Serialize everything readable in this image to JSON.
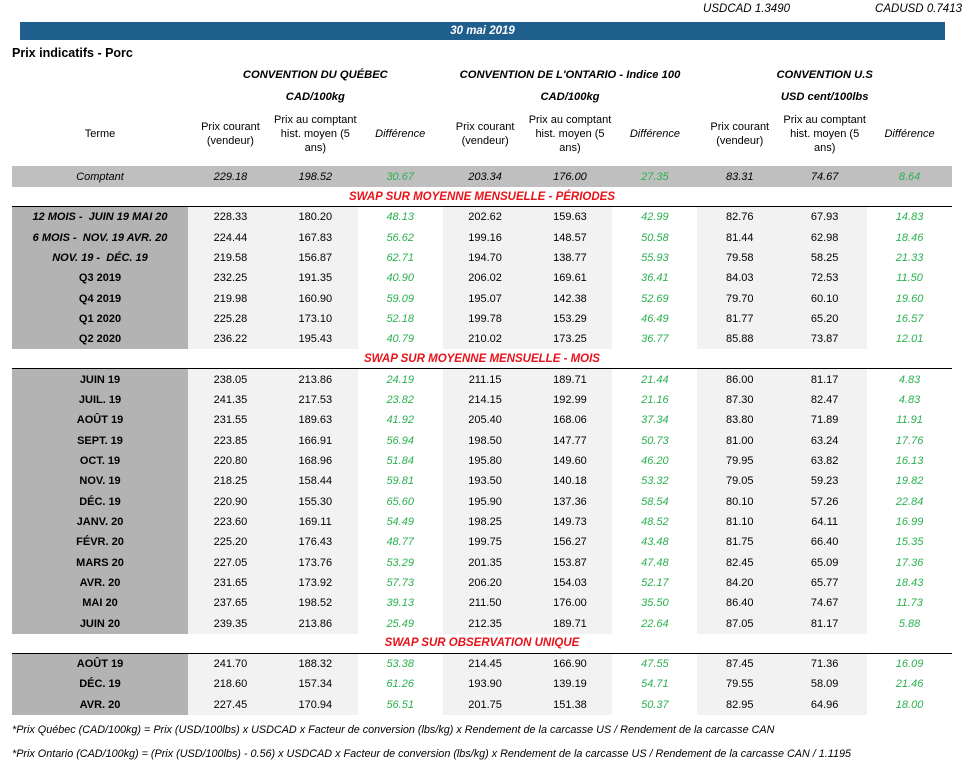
{
  "rates": {
    "usdcad_label": "USDCAD",
    "usdcad_value": "1.3490",
    "cadusd_label": "CADUSD",
    "cadusd_value": "0.7413"
  },
  "header": {
    "date": "30 mai 2019",
    "title": "Prix indicatifs - Porc"
  },
  "colors": {
    "banner_blue": "#1e5f8e",
    "section_red": "#e8131a",
    "diff_green": "#2bb150",
    "row_gray": "#bfbfbf",
    "terme_gray": "#b3b3b3",
    "cell_light": "#f2f2f2"
  },
  "groups": [
    {
      "title": "CONVENTION DU QUÉBEC",
      "unit": "CAD/100kg"
    },
    {
      "title": "CONVENTION DE L'ONTARIO - Indice 100",
      "unit": "CAD/100kg"
    },
    {
      "title": "CONVENTION U.S",
      "unit": "USD cent/100lbs"
    }
  ],
  "column_headers": {
    "terme": "Terme",
    "current": "Prix courant (vendeur)",
    "hist": "Prix au comptant hist. moyen (5 ans)",
    "diff": "Différence"
  },
  "spot_row": {
    "terme": "Comptant",
    "values": [
      "229.18",
      "198.52",
      "30.67",
      "203.34",
      "176.00",
      "27.35",
      "83.31",
      "74.67",
      "8.64"
    ]
  },
  "sections": [
    {
      "title": "SWAP SUR MOYENNE MENSUELLE - PÉRIODES",
      "rows": [
        {
          "terme": "12 MOIS -  JUIN 19 MAI 20",
          "italic": true,
          "values": [
            "228.33",
            "180.20",
            "48.13",
            "202.62",
            "159.63",
            "42.99",
            "82.76",
            "67.93",
            "14.83"
          ]
        },
        {
          "terme": "6 MOIS -  NOV. 19 AVR. 20",
          "italic": true,
          "values": [
            "224.44",
            "167.83",
            "56.62",
            "199.16",
            "148.57",
            "50.58",
            "81.44",
            "62.98",
            "18.46"
          ]
        },
        {
          "terme": "NOV. 19 -  DÉC. 19",
          "italic": true,
          "values": [
            "219.58",
            "156.87",
            "62.71",
            "194.70",
            "138.77",
            "55.93",
            "79.58",
            "58.25",
            "21.33"
          ]
        },
        {
          "terme": "Q3 2019",
          "italic": false,
          "values": [
            "232.25",
            "191.35",
            "40.90",
            "206.02",
            "169.61",
            "36.41",
            "84.03",
            "72.53",
            "11.50"
          ]
        },
        {
          "terme": "Q4 2019",
          "italic": false,
          "values": [
            "219.98",
            "160.90",
            "59.09",
            "195.07",
            "142.38",
            "52.69",
            "79.70",
            "60.10",
            "19.60"
          ]
        },
        {
          "terme": "Q1 2020",
          "italic": false,
          "values": [
            "225.28",
            "173.10",
            "52.18",
            "199.78",
            "153.29",
            "46.49",
            "81.77",
            "65.20",
            "16.57"
          ]
        },
        {
          "terme": "Q2 2020",
          "italic": false,
          "values": [
            "236.22",
            "195.43",
            "40.79",
            "210.02",
            "173.25",
            "36.77",
            "85.88",
            "73.87",
            "12.01"
          ]
        }
      ]
    },
    {
      "title": "SWAP SUR MOYENNE MENSUELLE - MOIS",
      "rows": [
        {
          "terme": "JUIN 19",
          "italic": false,
          "values": [
            "238.05",
            "213.86",
            "24.19",
            "211.15",
            "189.71",
            "21.44",
            "86.00",
            "81.17",
            "4.83"
          ]
        },
        {
          "terme": "JUIL. 19",
          "italic": false,
          "values": [
            "241.35",
            "217.53",
            "23.82",
            "214.15",
            "192.99",
            "21.16",
            "87.30",
            "82.47",
            "4.83"
          ]
        },
        {
          "terme": "AOÛT 19",
          "italic": false,
          "values": [
            "231.55",
            "189.63",
            "41.92",
            "205.40",
            "168.06",
            "37.34",
            "83.80",
            "71.89",
            "11.91"
          ]
        },
        {
          "terme": "SEPT. 19",
          "italic": false,
          "values": [
            "223.85",
            "166.91",
            "56.94",
            "198.50",
            "147.77",
            "50.73",
            "81.00",
            "63.24",
            "17.76"
          ]
        },
        {
          "terme": "OCT. 19",
          "italic": false,
          "values": [
            "220.80",
            "168.96",
            "51.84",
            "195.80",
            "149.60",
            "46.20",
            "79.95",
            "63.82",
            "16.13"
          ]
        },
        {
          "terme": "NOV. 19",
          "italic": false,
          "values": [
            "218.25",
            "158.44",
            "59.81",
            "193.50",
            "140.18",
            "53.32",
            "79.05",
            "59.23",
            "19.82"
          ]
        },
        {
          "terme": "DÉC. 19",
          "italic": false,
          "values": [
            "220.90",
            "155.30",
            "65.60",
            "195.90",
            "137.36",
            "58.54",
            "80.10",
            "57.26",
            "22.84"
          ]
        },
        {
          "terme": "JANV. 20",
          "italic": false,
          "values": [
            "223.60",
            "169.11",
            "54.49",
            "198.25",
            "149.73",
            "48.52",
            "81.10",
            "64.11",
            "16.99"
          ]
        },
        {
          "terme": "FÉVR. 20",
          "italic": false,
          "values": [
            "225.20",
            "176.43",
            "48.77",
            "199.75",
            "156.27",
            "43.48",
            "81.75",
            "66.40",
            "15.35"
          ]
        },
        {
          "terme": "MARS 20",
          "italic": false,
          "values": [
            "227.05",
            "173.76",
            "53.29",
            "201.35",
            "153.87",
            "47.48",
            "82.45",
            "65.09",
            "17.36"
          ]
        },
        {
          "terme": "AVR. 20",
          "italic": false,
          "values": [
            "231.65",
            "173.92",
            "57.73",
            "206.20",
            "154.03",
            "52.17",
            "84.20",
            "65.77",
            "18.43"
          ]
        },
        {
          "terme": "MAI 20",
          "italic": false,
          "values": [
            "237.65",
            "198.52",
            "39.13",
            "211.50",
            "176.00",
            "35.50",
            "86.40",
            "74.67",
            "11.73"
          ]
        },
        {
          "terme": "JUIN 20",
          "italic": false,
          "values": [
            "239.35",
            "213.86",
            "25.49",
            "212.35",
            "189.71",
            "22.64",
            "87.05",
            "81.17",
            "5.88"
          ]
        }
      ]
    },
    {
      "title": "SWAP SUR OBSERVATION UNIQUE",
      "rows": [
        {
          "terme": "AOÛT 19",
          "italic": false,
          "values": [
            "241.70",
            "188.32",
            "53.38",
            "214.45",
            "166.90",
            "47.55",
            "87.45",
            "71.36",
            "16.09"
          ]
        },
        {
          "terme": "DÉC. 19",
          "italic": false,
          "values": [
            "218.60",
            "157.34",
            "61.26",
            "193.90",
            "139.19",
            "54.71",
            "79.55",
            "58.09",
            "21.46"
          ]
        },
        {
          "terme": "AVR. 20",
          "italic": false,
          "values": [
            "227.45",
            "170.94",
            "56.51",
            "201.75",
            "151.38",
            "50.37",
            "82.95",
            "64.96",
            "18.00"
          ]
        }
      ]
    }
  ],
  "footnotes": [
    "*Prix Québec (CAD/100kg) = Prix (USD/100lbs) x USDCAD x Facteur de conversion (lbs/kg) x Rendement de la carcasse US / Rendement de la carcasse CAN",
    "*Prix Ontario (CAD/100kg) = (Prix (USD/100lbs) - 0.56) x USDCAD x Facteur de conversion (lbs/kg) x Rendement de la carcasse US / Rendement de la carcasse CAN / 1.1195"
  ]
}
